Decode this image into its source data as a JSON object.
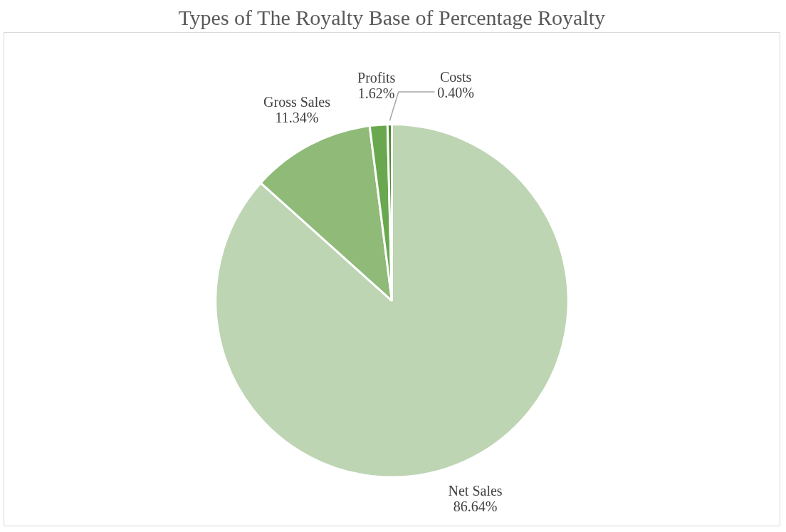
{
  "chart_data": {
    "type": "pie",
    "title": "Types of The Royalty Base of Percentage Royalty",
    "categories": [
      "Net Sales",
      "Gross Sales",
      "Profits",
      "Costs"
    ],
    "values": [
      86.64,
      11.34,
      1.62,
      0.4
    ],
    "value_labels": [
      "86.64%",
      "11.34%",
      "1.62%",
      "0.40%"
    ],
    "colors": [
      "#bdd5b3",
      "#8fba78",
      "#6aa84f",
      "#4e8a36"
    ],
    "legend": false
  }
}
